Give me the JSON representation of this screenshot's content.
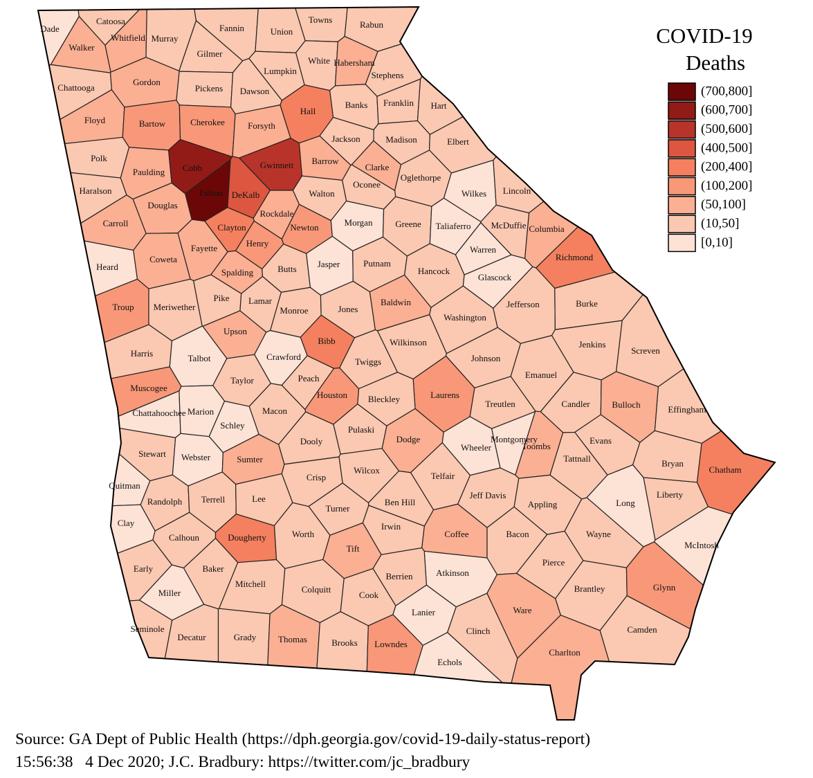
{
  "title": [
    "COVID-19",
    "Deaths"
  ],
  "legend": [
    {
      "label": "(700,800]",
      "color": "#6b0807"
    },
    {
      "label": "(600,700]",
      "color": "#931b17"
    },
    {
      "label": "(500,600]",
      "color": "#b8342a"
    },
    {
      "label": "(400,500]",
      "color": "#dc5640"
    },
    {
      "label": "(200,400]",
      "color": "#f4805f"
    },
    {
      "label": "(100,200]",
      "color": "#f89878"
    },
    {
      "label": "(50,100]",
      "color": "#fbaf93"
    },
    {
      "label": "(10,50]",
      "color": "#fbc8b1"
    },
    {
      "label": "[0,10]",
      "color": "#fde2d6"
    }
  ],
  "counties": [
    {
      "name": "Dade",
      "color": "#fde2d6"
    },
    {
      "name": "Catoosa",
      "color": "#fbc8b1"
    },
    {
      "name": "Walker",
      "color": "#fbaf93"
    },
    {
      "name": "Whitfield",
      "color": "#fbaf93"
    },
    {
      "name": "Murray",
      "color": "#fbc8b1"
    },
    {
      "name": "Fannin",
      "color": "#fbc8b1"
    },
    {
      "name": "Union",
      "color": "#fbc8b1"
    },
    {
      "name": "Towns",
      "color": "#fbc8b1"
    },
    {
      "name": "Rabun",
      "color": "#fbc8b1"
    },
    {
      "name": "Gilmer",
      "color": "#fbc8b1"
    },
    {
      "name": "White",
      "color": "#fbc8b1"
    },
    {
      "name": "Habersham",
      "color": "#fbaf93"
    },
    {
      "name": "Lumpkin",
      "color": "#fbc8b1"
    },
    {
      "name": "Stephens",
      "color": "#fbc8b1"
    },
    {
      "name": "Chattooga",
      "color": "#fbc8b1"
    },
    {
      "name": "Gordon",
      "color": "#fbaf93"
    },
    {
      "name": "Pickens",
      "color": "#fbc8b1"
    },
    {
      "name": "Dawson",
      "color": "#fbc8b1"
    },
    {
      "name": "Banks",
      "color": "#fbc8b1"
    },
    {
      "name": "Franklin",
      "color": "#fbc8b1"
    },
    {
      "name": "Hart",
      "color": "#fbc8b1"
    },
    {
      "name": "Floyd",
      "color": "#fbaf93"
    },
    {
      "name": "Bartow",
      "color": "#f89878"
    },
    {
      "name": "Cherokee",
      "color": "#f89878"
    },
    {
      "name": "Forsyth",
      "color": "#fbaf93"
    },
    {
      "name": "Hall",
      "color": "#f4805f"
    },
    {
      "name": "Jackson",
      "color": "#fbc8b1"
    },
    {
      "name": "Madison",
      "color": "#fbc8b1"
    },
    {
      "name": "Elbert",
      "color": "#fbc8b1"
    },
    {
      "name": "Polk",
      "color": "#fbc8b1"
    },
    {
      "name": "Paulding",
      "color": "#fbaf93"
    },
    {
      "name": "Cobb",
      "color": "#931b17"
    },
    {
      "name": "Gwinnett",
      "color": "#b8342a"
    },
    {
      "name": "Barrow",
      "color": "#fbaf93"
    },
    {
      "name": "Clarke",
      "color": "#fbaf93"
    },
    {
      "name": "Oglethorpe",
      "color": "#fbc8b1"
    },
    {
      "name": "Wilkes",
      "color": "#fde2d6"
    },
    {
      "name": "Lincoln",
      "color": "#fbc8b1"
    },
    {
      "name": "Haralson",
      "color": "#fbc8b1"
    },
    {
      "name": "Fulton",
      "color": "#6b0807"
    },
    {
      "name": "DeKalb",
      "color": "#dc5640"
    },
    {
      "name": "Walton",
      "color": "#fbc8b1"
    },
    {
      "name": "Oconee",
      "color": "#fbc8b1"
    },
    {
      "name": "Douglas",
      "color": "#fbaf93"
    },
    {
      "name": "Carroll",
      "color": "#fbaf93"
    },
    {
      "name": "Rockdale",
      "color": "#fbaf93"
    },
    {
      "name": "Newton",
      "color": "#f89878"
    },
    {
      "name": "Morgan",
      "color": "#fde2d6"
    },
    {
      "name": "Greene",
      "color": "#fbc8b1"
    },
    {
      "name": "Taliaferro",
      "color": "#fde2d6"
    },
    {
      "name": "Columbia",
      "color": "#fbaf93"
    },
    {
      "name": "McDuffie",
      "color": "#fbc8b1"
    },
    {
      "name": "Clayton",
      "color": "#f4805f"
    },
    {
      "name": "Fayette",
      "color": "#fbaf93"
    },
    {
      "name": "Henry",
      "color": "#f89878"
    },
    {
      "name": "Warren",
      "color": "#fde2d6"
    },
    {
      "name": "Richmond",
      "color": "#f4805f"
    },
    {
      "name": "Heard",
      "color": "#fde2d6"
    },
    {
      "name": "Coweta",
      "color": "#fbaf93"
    },
    {
      "name": "Jasper",
      "color": "#fde2d6"
    },
    {
      "name": "Putnam",
      "color": "#fbc8b1"
    },
    {
      "name": "Hancock",
      "color": "#fbc8b1"
    },
    {
      "name": "Spalding",
      "color": "#fbaf93"
    },
    {
      "name": "Butts",
      "color": "#fbc8b1"
    },
    {
      "name": "Glascock",
      "color": "#fde2d6"
    },
    {
      "name": "Troup",
      "color": "#f89878"
    },
    {
      "name": "Meriwether",
      "color": "#fbc8b1"
    },
    {
      "name": "Pike",
      "color": "#fbc8b1"
    },
    {
      "name": "Lamar",
      "color": "#fbc8b1"
    },
    {
      "name": "Monroe",
      "color": "#fbc8b1"
    },
    {
      "name": "Jones",
      "color": "#fbc8b1"
    },
    {
      "name": "Baldwin",
      "color": "#fbaf93"
    },
    {
      "name": "Washington",
      "color": "#fbc8b1"
    },
    {
      "name": "Jefferson",
      "color": "#fbc8b1"
    },
    {
      "name": "Burke",
      "color": "#fbc8b1"
    },
    {
      "name": "Upson",
      "color": "#fbaf93"
    },
    {
      "name": "Bibb",
      "color": "#f4805f"
    },
    {
      "name": "Wilkinson",
      "color": "#fbc8b1"
    },
    {
      "name": "Jenkins",
      "color": "#fbc8b1"
    },
    {
      "name": "Screven",
      "color": "#fbc8b1"
    },
    {
      "name": "Harris",
      "color": "#fbc8b1"
    },
    {
      "name": "Talbot",
      "color": "#fde2d6"
    },
    {
      "name": "Crawford",
      "color": "#fde2d6"
    },
    {
      "name": "Twiggs",
      "color": "#fbc8b1"
    },
    {
      "name": "Johnson",
      "color": "#fbc8b1"
    },
    {
      "name": "Emanuel",
      "color": "#fbc8b1"
    },
    {
      "name": "Taylor",
      "color": "#fbc8b1"
    },
    {
      "name": "Peach",
      "color": "#fbc8b1"
    },
    {
      "name": "Muscogee",
      "color": "#f89878"
    },
    {
      "name": "Laurens",
      "color": "#f89878"
    },
    {
      "name": "Houston",
      "color": "#f89878"
    },
    {
      "name": "Bleckley",
      "color": "#fbc8b1"
    },
    {
      "name": "Treutlen",
      "color": "#fbc8b1"
    },
    {
      "name": "Candler",
      "color": "#fbc8b1"
    },
    {
      "name": "Bulloch",
      "color": "#fbaf93"
    },
    {
      "name": "Effingham",
      "color": "#fbc8b1"
    },
    {
      "name": "Chattahoochee",
      "color": "#fde2d6"
    },
    {
      "name": "Marion",
      "color": "#fde2d6"
    },
    {
      "name": "Macon",
      "color": "#fbc8b1"
    },
    {
      "name": "Schley",
      "color": "#fde2d6"
    },
    {
      "name": "Dodge",
      "color": "#fbaf93"
    },
    {
      "name": "Pulaski",
      "color": "#fbc8b1"
    },
    {
      "name": "Dooly",
      "color": "#fbc8b1"
    },
    {
      "name": "Montgomery",
      "color": "#fde2d6"
    },
    {
      "name": "Toombs",
      "color": "#fbaf93"
    },
    {
      "name": "Evans",
      "color": "#fbc8b1"
    },
    {
      "name": "Tattnall",
      "color": "#fbc8b1"
    },
    {
      "name": "Stewart",
      "color": "#fbc8b1"
    },
    {
      "name": "Webster",
      "color": "#fde2d6"
    },
    {
      "name": "Sumter",
      "color": "#fbaf93"
    },
    {
      "name": "Wheeler",
      "color": "#fde2d6"
    },
    {
      "name": "Bryan",
      "color": "#fbc8b1"
    },
    {
      "name": "Chatham",
      "color": "#f4805f"
    },
    {
      "name": "Telfair",
      "color": "#fbc8b1"
    },
    {
      "name": "Wilcox",
      "color": "#fbc8b1"
    },
    {
      "name": "Crisp",
      "color": "#fbc8b1"
    },
    {
      "name": "Quitman",
      "color": "#fde2d6"
    },
    {
      "name": "Liberty",
      "color": "#fbc8b1"
    },
    {
      "name": "Randolph",
      "color": "#fbc8b1"
    },
    {
      "name": "Terrell",
      "color": "#fbc8b1"
    },
    {
      "name": "Lee",
      "color": "#fbc8b1"
    },
    {
      "name": "Jeff Davis",
      "color": "#fbc8b1"
    },
    {
      "name": "Ben Hill",
      "color": "#fbc8b1"
    },
    {
      "name": "Turner",
      "color": "#fbc8b1"
    },
    {
      "name": "Appling",
      "color": "#fbc8b1"
    },
    {
      "name": "Long",
      "color": "#fde2d6"
    },
    {
      "name": "Clay",
      "color": "#fde2d6"
    },
    {
      "name": "Irwin",
      "color": "#fbc8b1"
    },
    {
      "name": "Calhoun",
      "color": "#fbc8b1"
    },
    {
      "name": "Dougherty",
      "color": "#f4805f"
    },
    {
      "name": "Worth",
      "color": "#fbc8b1"
    },
    {
      "name": "Coffee",
      "color": "#fbaf93"
    },
    {
      "name": "Bacon",
      "color": "#fbc8b1"
    },
    {
      "name": "Wayne",
      "color": "#fbc8b1"
    },
    {
      "name": "McIntosh",
      "color": "#fde2d6"
    },
    {
      "name": "Tift",
      "color": "#fbaf93"
    },
    {
      "name": "Early",
      "color": "#fbc8b1"
    },
    {
      "name": "Baker",
      "color": "#fbc8b1"
    },
    {
      "name": "Pierce",
      "color": "#fbc8b1"
    },
    {
      "name": "Atkinson",
      "color": "#fde2d6"
    },
    {
      "name": "Berrien",
      "color": "#fbc8b1"
    },
    {
      "name": "Mitchell",
      "color": "#fbc8b1"
    },
    {
      "name": "Colquitt",
      "color": "#fbc8b1"
    },
    {
      "name": "Brantley",
      "color": "#fbc8b1"
    },
    {
      "name": "Glynn",
      "color": "#f89878"
    },
    {
      "name": "Miller",
      "color": "#fde2d6"
    },
    {
      "name": "Cook",
      "color": "#fbc8b1"
    },
    {
      "name": "Lanier",
      "color": "#fde2d6"
    },
    {
      "name": "Ware",
      "color": "#fbaf93"
    },
    {
      "name": "Clinch",
      "color": "#fbc8b1"
    },
    {
      "name": "Camden",
      "color": "#fbc8b1"
    },
    {
      "name": "Seminole",
      "color": "#fbc8b1"
    },
    {
      "name": "Decatur",
      "color": "#fbc8b1"
    },
    {
      "name": "Grady",
      "color": "#fbc8b1"
    },
    {
      "name": "Thomas",
      "color": "#fbaf93"
    },
    {
      "name": "Brooks",
      "color": "#fbc8b1"
    },
    {
      "name": "Lowndes",
      "color": "#f89878"
    },
    {
      "name": "Charlton",
      "color": "#fbaf93"
    },
    {
      "name": "Echols",
      "color": "#fde2d6"
    }
  ],
  "source": [
    "Source: GA Dept of Public Health (https://dph.georgia.gov/covid-19-daily-status-report)",
    "15:56:38   4 Dec 2020; J.C. Bradbury: https://twitter.com/jc_bradbury"
  ]
}
